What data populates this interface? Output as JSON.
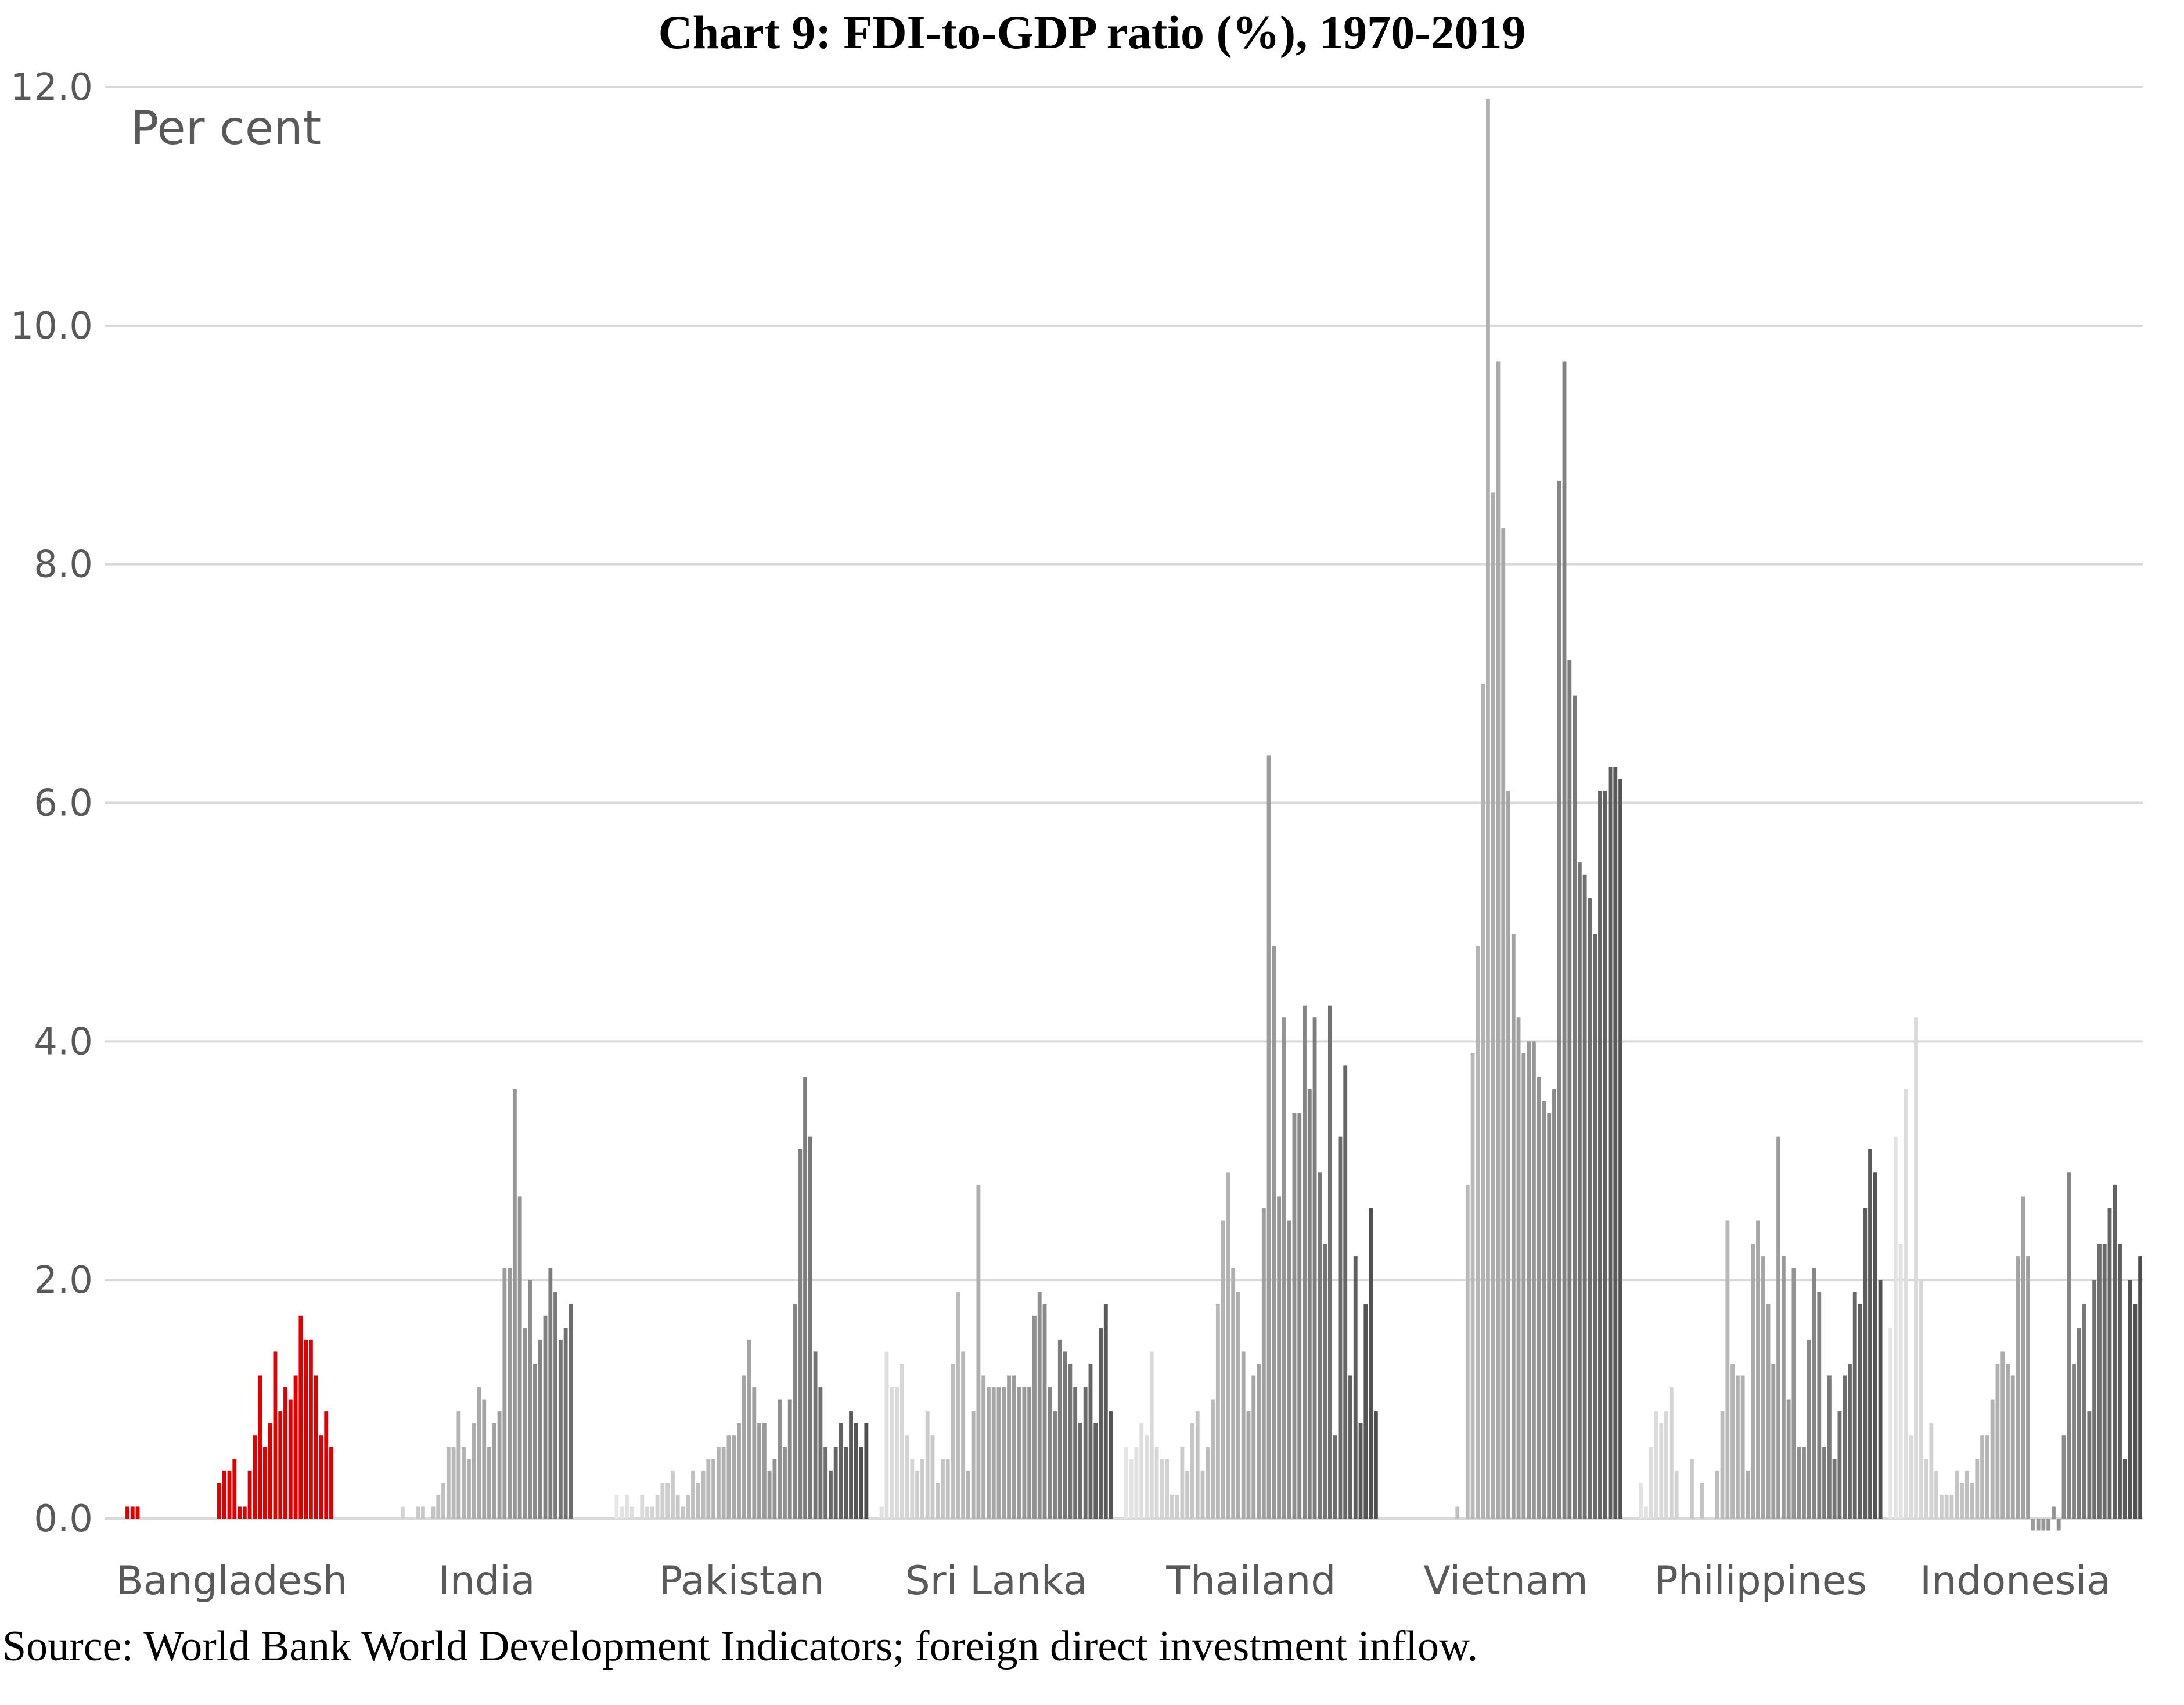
{
  "title": "Chart 9: FDI-to-GDP ratio (%), 1970-2019",
  "source": "Source: World Bank World Development Indicators; foreign direct investment inflow.",
  "chart_data": {
    "type": "bar",
    "ylabel": "Per cent",
    "ylim": [
      0,
      12
    ],
    "yticks": [
      "0.0",
      "2.0",
      "4.0",
      "6.0",
      "8.0",
      "10.0",
      "12.0"
    ],
    "grid": true,
    "years": [
      1970,
      2019
    ],
    "highlight_color": "#e00000",
    "series": [
      {
        "name": "Bangladesh",
        "values": [
          0,
          0,
          0,
          0,
          0.1,
          0.1,
          0.1,
          0,
          0,
          0,
          0,
          0,
          0,
          0,
          0,
          0,
          0,
          0,
          0,
          0,
          0,
          0,
          0.3,
          0.4,
          0.4,
          0.5,
          0.1,
          0.1,
          0.4,
          0.7,
          1.2,
          0.6,
          0.8,
          1.4,
          0.9,
          1.1,
          1.0,
          1.2,
          1.7,
          1.5,
          1.5,
          1.2,
          0.7,
          0.9,
          0.6,
          0,
          0,
          0,
          0,
          0
        ]
      },
      {
        "name": "India",
        "values": [
          0,
          0,
          0,
          0,
          0,
          0,
          0,
          0,
          0.1,
          0,
          0,
          0.1,
          0.1,
          0,
          0.1,
          0.2,
          0.3,
          0.6,
          0.6,
          0.9,
          0.6,
          0.5,
          0.8,
          1.1,
          1.0,
          0.6,
          0.8,
          0.9,
          2.1,
          2.1,
          3.6,
          2.7,
          1.6,
          2.0,
          1.3,
          1.5,
          1.7,
          2.1,
          1.9,
          1.5,
          1.6,
          1.8,
          0,
          0,
          0,
          0,
          0,
          0,
          0,
          0
        ]
      },
      {
        "name": "Pakistan",
        "values": [
          0.2,
          0.1,
          0.2,
          0.1,
          0,
          0.2,
          0.1,
          0.1,
          0.2,
          0.3,
          0.3,
          0.4,
          0.2,
          0.1,
          0.2,
          0.4,
          0.3,
          0.4,
          0.5,
          0.5,
          0.6,
          0.6,
          0.7,
          0.7,
          0.8,
          1.2,
          1.5,
          1.1,
          0.8,
          0.8,
          0.4,
          0.5,
          1.0,
          0.6,
          1.0,
          1.8,
          3.1,
          3.7,
          3.2,
          1.4,
          1.1,
          0.6,
          0.4,
          0.6,
          0.8,
          0.6,
          0.9,
          0.8,
          0.6,
          0.8
        ]
      },
      {
        "name": "Sri Lanka",
        "values": [
          0,
          0,
          0.1,
          1.4,
          1.1,
          1.1,
          1.3,
          0.7,
          0.5,
          0.4,
          0.5,
          0.9,
          0.7,
          0.3,
          0.5,
          0.5,
          1.3,
          1.9,
          1.4,
          0.4,
          0.9,
          2.8,
          1.2,
          1.1,
          1.1,
          1.1,
          1.1,
          1.2,
          1.2,
          1.1,
          1.1,
          1.1,
          1.7,
          1.9,
          1.8,
          1.1,
          0.9,
          1.5,
          1.4,
          1.3,
          1.1,
          0.8,
          1.1,
          1.3,
          0.8,
          1.6,
          1.8,
          0.9,
          0,
          0
        ]
      },
      {
        "name": "Thailand",
        "values": [
          0.6,
          0.5,
          0.6,
          0.8,
          0.7,
          1.4,
          0.6,
          0.5,
          0.5,
          0.2,
          0.2,
          0.6,
          0.4,
          0.8,
          0.9,
          0.4,
          0.6,
          1.0,
          1.8,
          2.5,
          2.9,
          2.1,
          1.9,
          1.4,
          0.9,
          1.2,
          1.3,
          2.6,
          6.4,
          4.8,
          2.7,
          4.2,
          2.5,
          3.4,
          3.4,
          4.3,
          3.6,
          4.2,
          2.9,
          2.3,
          4.3,
          0.7,
          3.2,
          3.8,
          1.2,
          2.2,
          0.8,
          1.8,
          2.6,
          0.9
        ]
      },
      {
        "name": "Vietnam",
        "values": [
          0,
          0,
          0,
          0,
          0,
          0,
          0,
          0,
          0,
          0,
          0,
          0,
          0,
          0,
          0,
          0.1,
          0,
          2.8,
          3.9,
          4.8,
          7.0,
          11.9,
          8.6,
          9.7,
          8.3,
          6.1,
          4.9,
          4.2,
          3.9,
          4.0,
          4.0,
          3.7,
          3.5,
          3.4,
          3.6,
          8.7,
          9.7,
          7.2,
          6.9,
          5.5,
          5.4,
          5.2,
          4.9,
          6.1,
          6.1,
          6.3,
          6.3,
          6.2,
          0,
          0
        ]
      },
      {
        "name": "Philippines",
        "values": [
          0,
          0.3,
          0.1,
          0.6,
          0.9,
          0.8,
          0.9,
          1.1,
          0.4,
          0,
          0,
          0.5,
          0,
          0.3,
          0,
          0,
          0.4,
          0.9,
          2.5,
          1.3,
          1.2,
          1.2,
          0.4,
          2.3,
          2.5,
          2.2,
          1.8,
          1.3,
          3.2,
          2.2,
          1.0,
          2.1,
          0.6,
          0.6,
          1.5,
          2.1,
          1.9,
          0.6,
          1.2,
          0.5,
          0.9,
          1.2,
          1.3,
          1.9,
          1.8,
          2.6,
          3.1,
          2.9,
          2.0,
          0
        ]
      },
      {
        "name": "Indonesia",
        "values": [
          1.6,
          3.2,
          2.3,
          3.6,
          0.7,
          4.2,
          2.0,
          0.5,
          0.8,
          0.4,
          0.2,
          0.2,
          0.2,
          0.4,
          0.3,
          0.4,
          0.3,
          0.5,
          0.7,
          0.7,
          1.0,
          1.3,
          1.4,
          1.3,
          1.2,
          2.2,
          2.7,
          2.2,
          -0.1,
          -0.1,
          -0.1,
          -0.1,
          0.1,
          -0.1,
          0.7,
          2.9,
          1.3,
          1.6,
          1.8,
          0.9,
          2.0,
          2.3,
          2.3,
          2.6,
          2.8,
          2.3,
          0.5,
          2.0,
          1.8,
          2.2
        ]
      }
    ]
  }
}
